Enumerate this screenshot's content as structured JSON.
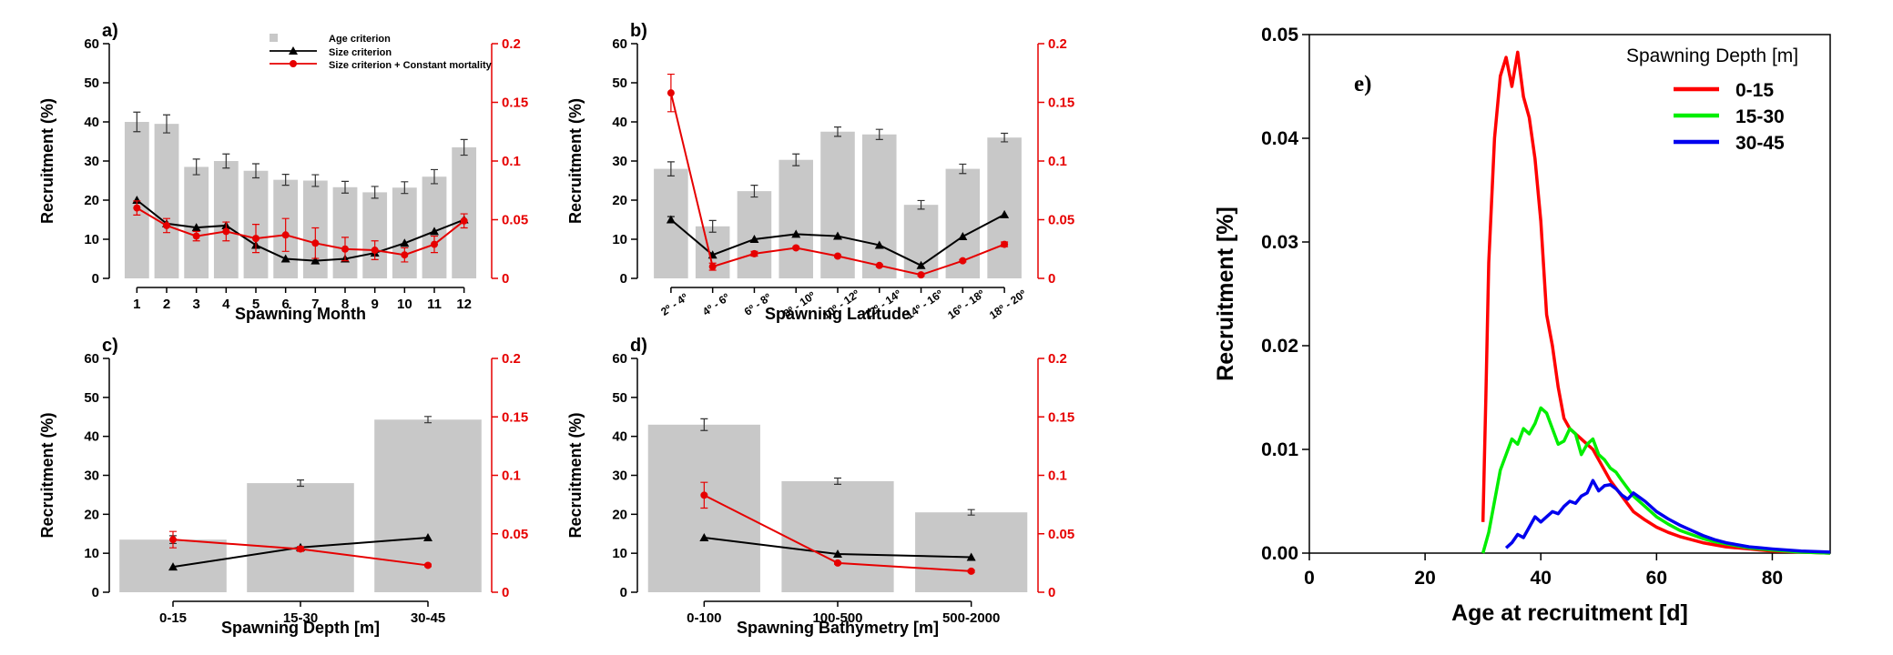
{
  "chart_data": [
    {
      "panel": "a)",
      "type": "bar",
      "xlabel": "Spawning Month",
      "ylabel": "Recruitment (%)",
      "ylim": [
        0,
        60
      ],
      "yticks": [
        "0",
        "10",
        "20",
        "30",
        "40",
        "50",
        "60"
      ],
      "y2lim": [
        0,
        0.2
      ],
      "y2ticks": [
        "0",
        "0.05",
        "0.1",
        "0.15",
        "0.2"
      ],
      "categories": [
        "1",
        "2",
        "3",
        "4",
        "5",
        "6",
        "7",
        "8",
        "9",
        "10",
        "11",
        "12"
      ],
      "bars": {
        "name": "Age criterion",
        "values": [
          40,
          39.5,
          28.5,
          30,
          27.5,
          25.2,
          25,
          23.3,
          22,
          23.2,
          26,
          33.5
        ],
        "errors": [
          2.5,
          2.3,
          2,
          1.8,
          1.8,
          1.4,
          1.5,
          1.5,
          1.5,
          1.5,
          1.8,
          2
        ]
      },
      "size_line": {
        "name": "Size criterion",
        "values": [
          20,
          14,
          13,
          13.5,
          8.5,
          5,
          4.5,
          5,
          6.5,
          9,
          12,
          15
        ]
      },
      "mortality_line": {
        "name": "Size criterion + Constant mortality",
        "values": [
          0.06,
          0.045,
          0.036,
          0.04,
          0.034,
          0.037,
          0.03,
          0.025,
          0.024,
          0.02,
          0.029,
          0.049
        ],
        "errors": [
          0.006,
          0.006,
          0.004,
          0.008,
          0.012,
          0.014,
          0.013,
          0.01,
          0.008,
          0.006,
          0.007,
          0.006
        ]
      },
      "legend": [
        "Age criterion",
        "Size criterion",
        "Size criterion + Constant mortality"
      ]
    },
    {
      "panel": "b)",
      "type": "bar",
      "xlabel": "Spawning Latitude",
      "ylabel": "Recruitment (%)",
      "ylim": [
        0,
        60
      ],
      "yticks": [
        "0",
        "10",
        "20",
        "30",
        "40",
        "50",
        "60"
      ],
      "y2lim": [
        0,
        0.2
      ],
      "y2ticks": [
        "0",
        "0.05",
        "0.1",
        "0.15",
        "0.2"
      ],
      "categories": [
        "2º - 4º",
        "4º - 6º",
        "6º - 8º",
        "8º - 10º",
        "10º - 12º",
        "12º - 14º",
        "14º - 16º",
        "16º - 18º",
        "18º - 20º"
      ],
      "bars": {
        "name": "Age criterion",
        "values": [
          28,
          13.3,
          22.3,
          30.3,
          37.5,
          36.8,
          18.8,
          28,
          36
        ],
        "errors": [
          1.8,
          1.5,
          1.5,
          1.5,
          1.2,
          1.3,
          1.1,
          1.2,
          1.1
        ]
      },
      "size_line": {
        "name": "Size criterion",
        "values": [
          15,
          6,
          10,
          11.3,
          10.8,
          8.5,
          3.3,
          10.7,
          16.3
        ],
        "errors": [
          0.8,
          0,
          0,
          0,
          0,
          0,
          0,
          0,
          0
        ]
      },
      "mortality_line": {
        "name": "Size criterion + Constant mortality",
        "values": [
          0.158,
          0.01,
          0.021,
          0.026,
          0.019,
          0.011,
          0.003,
          0.015,
          0.029
        ],
        "errors": [
          0.016,
          0.003,
          0.002,
          0.001,
          0.001,
          0.001,
          0.001,
          0.001,
          0.002
        ]
      }
    },
    {
      "panel": "c)",
      "type": "bar",
      "xlabel": "Spawning Depth [m]",
      "ylabel": "Recruitment (%)",
      "ylim": [
        0,
        60
      ],
      "yticks": [
        "0",
        "10",
        "20",
        "30",
        "40",
        "50",
        "60"
      ],
      "y2lim": [
        0,
        0.2
      ],
      "y2ticks": [
        "0",
        "0.05",
        "0.1",
        "0.15",
        "0.2"
      ],
      "categories": [
        "0-15",
        "15-30",
        "30-45"
      ],
      "bars": {
        "name": "Age criterion",
        "values": [
          13.5,
          28,
          44.3
        ],
        "errors": [
          1,
          0.8,
          0.8
        ]
      },
      "size_line": {
        "name": "Size criterion",
        "values": [
          6.5,
          11.5,
          14
        ]
      },
      "mortality_line": {
        "name": "Size criterion + Constant mortality",
        "values": [
          0.045,
          0.037,
          0.023
        ],
        "errors": [
          0.007,
          0.002,
          0.001
        ]
      }
    },
    {
      "panel": "d)",
      "type": "bar",
      "xlabel": "Spawning Bathymetry [m]",
      "ylabel": "Recruitment (%)",
      "ylim": [
        0,
        60
      ],
      "yticks": [
        "0",
        "10",
        "20",
        "30",
        "40",
        "50",
        "60"
      ],
      "y2lim": [
        0,
        0.2
      ],
      "y2ticks": [
        "0",
        "0.05",
        "0.1",
        "0.15",
        "0.2"
      ],
      "categories": [
        "0-100",
        "100-500",
        "500-2000"
      ],
      "bars": {
        "name": "Age criterion",
        "values": [
          43,
          28.5,
          20.5
        ],
        "errors": [
          1.5,
          0.8,
          0.7
        ]
      },
      "size_line": {
        "name": "Size criterion",
        "values": [
          14,
          9.8,
          9
        ]
      },
      "mortality_line": {
        "name": "Size criterion + Constant mortality",
        "values": [
          0.083,
          0.025,
          0.018
        ],
        "errors": [
          0.011,
          0.001,
          0.001
        ]
      }
    },
    {
      "panel": "e)",
      "type": "line",
      "xlabel": "Age at recruitment [d]",
      "ylabel": "Recruitment [%]",
      "xlim": [
        0,
        90
      ],
      "ylim": [
        0,
        0.05
      ],
      "xticks": [
        "0",
        "20",
        "40",
        "60",
        "80"
      ],
      "yticks": [
        "0.00",
        "0.01",
        "0.02",
        "0.03",
        "0.04",
        "0.05"
      ],
      "legend_title": "Spawning Depth [m]",
      "series": [
        {
          "name": "0-15",
          "color": "#ff0000",
          "x": [
            30,
            30.5,
            31,
            32,
            33,
            34,
            35,
            36,
            37,
            38,
            39,
            40,
            41,
            42,
            43,
            44,
            45,
            46,
            47,
            48,
            49,
            50,
            52,
            54,
            56,
            58,
            60,
            62,
            64,
            66,
            68,
            70,
            72,
            74,
            76,
            78,
            80,
            85,
            90
          ],
          "y": [
            0.003,
            0.015,
            0.028,
            0.04,
            0.046,
            0.0478,
            0.045,
            0.0483,
            0.044,
            0.042,
            0.038,
            0.032,
            0.023,
            0.02,
            0.016,
            0.013,
            0.012,
            0.0115,
            0.011,
            0.0105,
            0.01,
            0.009,
            0.007,
            0.0055,
            0.004,
            0.0032,
            0.0025,
            0.002,
            0.0016,
            0.0013,
            0.001,
            0.0008,
            0.0006,
            0.0005,
            0.0004,
            0.0003,
            0.0002,
            0.0001,
            0.0
          ]
        },
        {
          "name": "15-30",
          "color": "#00ee00",
          "x": [
            30,
            31,
            32,
            33,
            34,
            35,
            36,
            37,
            38,
            39,
            40,
            41,
            42,
            43,
            44,
            45,
            46,
            47,
            48,
            49,
            50,
            51,
            52,
            53,
            54,
            56,
            58,
            60,
            62,
            64,
            66,
            68,
            70,
            72,
            74,
            76,
            78,
            80,
            85,
            90
          ],
          "y": [
            0.0,
            0.002,
            0.005,
            0.008,
            0.0095,
            0.011,
            0.0105,
            0.012,
            0.0115,
            0.0125,
            0.014,
            0.0135,
            0.012,
            0.0105,
            0.0108,
            0.012,
            0.0115,
            0.0095,
            0.0105,
            0.011,
            0.0095,
            0.009,
            0.0082,
            0.0078,
            0.007,
            0.0055,
            0.0045,
            0.0035,
            0.0028,
            0.0022,
            0.0018,
            0.0014,
            0.0011,
            0.0009,
            0.0007,
            0.0005,
            0.0004,
            0.0003,
            0.0001,
            0.0
          ]
        },
        {
          "name": "30-45",
          "color": "#0000ee",
          "x": [
            34,
            35,
            36,
            37,
            38,
            39,
            40,
            41,
            42,
            43,
            44,
            45,
            46,
            47,
            48,
            49,
            50,
            51,
            52,
            53,
            54,
            55,
            56,
            57,
            58,
            60,
            62,
            64,
            66,
            68,
            70,
            72,
            74,
            76,
            78,
            80,
            85,
            90
          ],
          "y": [
            0.0005,
            0.001,
            0.0018,
            0.0015,
            0.0025,
            0.0035,
            0.003,
            0.0035,
            0.004,
            0.0038,
            0.0045,
            0.005,
            0.0048,
            0.0055,
            0.0058,
            0.007,
            0.006,
            0.0065,
            0.0066,
            0.0062,
            0.0056,
            0.0052,
            0.0058,
            0.0054,
            0.005,
            0.004,
            0.0033,
            0.0027,
            0.0022,
            0.0017,
            0.0013,
            0.001,
            0.0008,
            0.0006,
            0.0005,
            0.0004,
            0.0002,
            0.0001
          ]
        }
      ]
    }
  ]
}
